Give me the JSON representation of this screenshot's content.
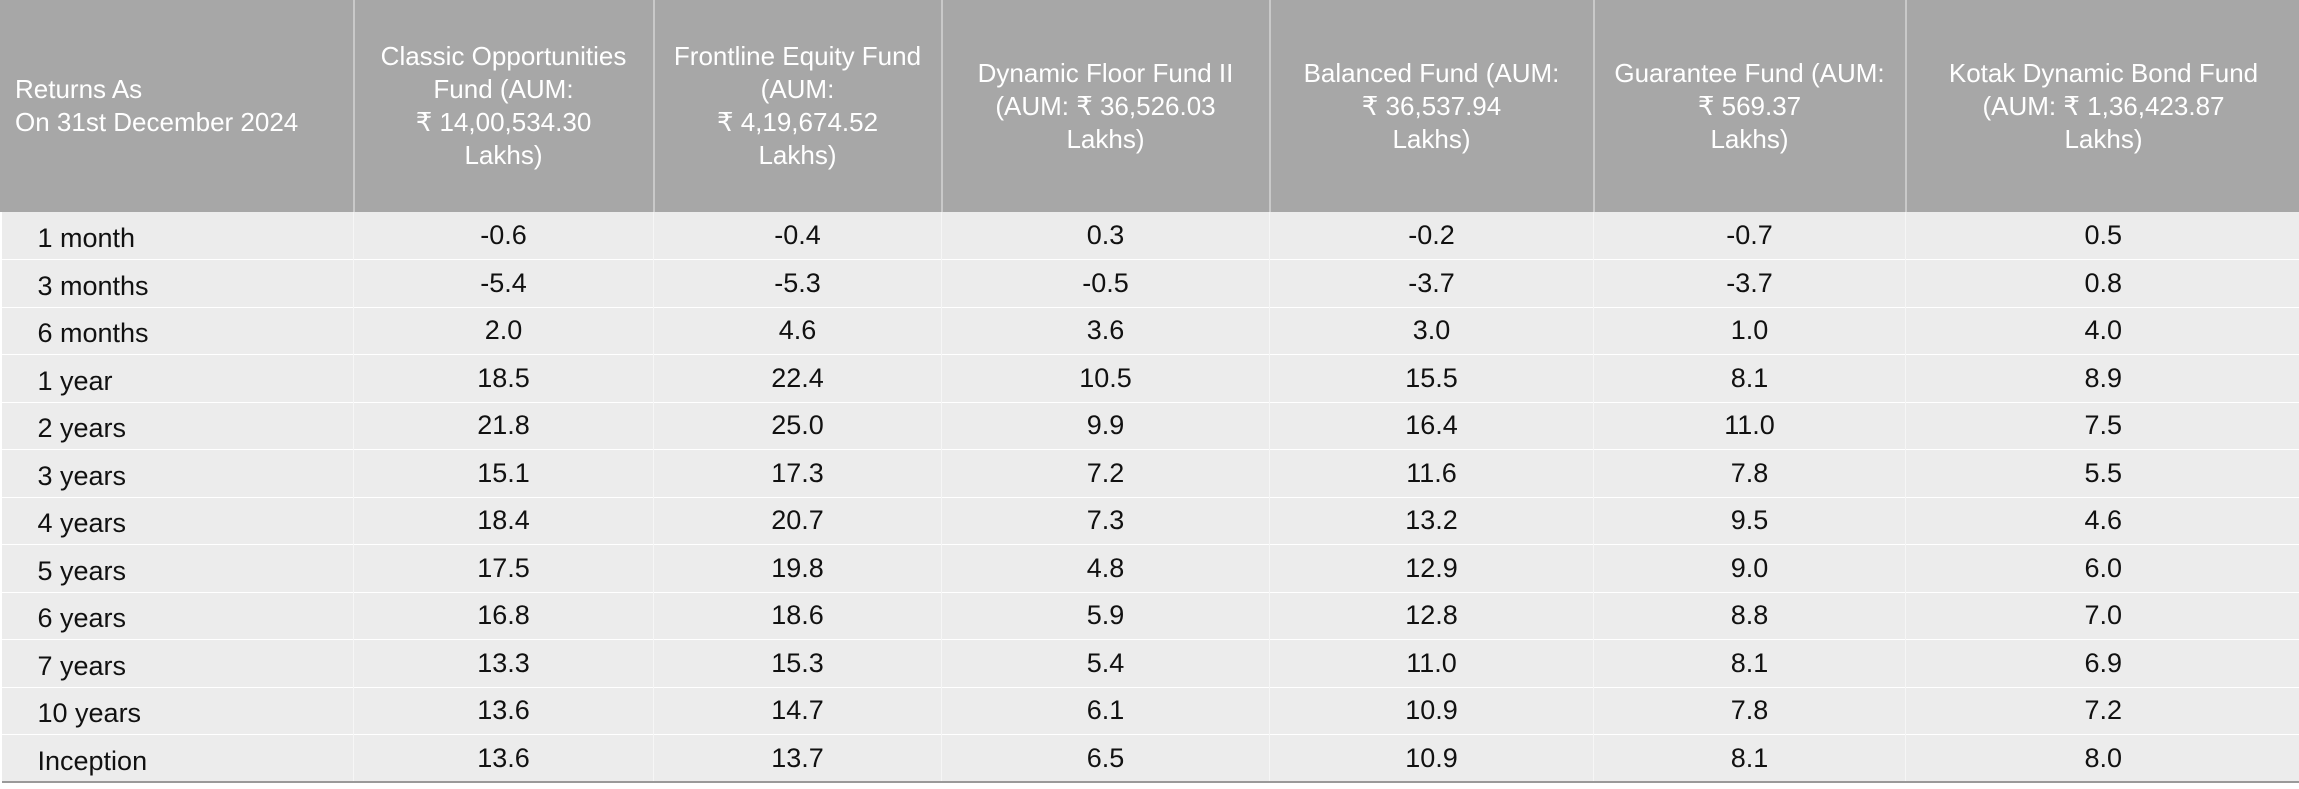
{
  "table": {
    "corner_header": {
      "line1": "Returns As",
      "line2": "On 31st December 2024"
    },
    "columns": [
      {
        "lines": [
          "Classic Opportunities",
          "Fund (AUM:",
          "₹ 14,00,534.30",
          "Lakhs)"
        ]
      },
      {
        "lines": [
          "Frontline Equity Fund",
          "(AUM:",
          "₹ 4,19,674.52",
          "Lakhs)"
        ]
      },
      {
        "lines": [
          "Dynamic Floor Fund II",
          "(AUM: ₹ 36,526.03",
          "Lakhs)"
        ]
      },
      {
        "lines": [
          "Balanced Fund (AUM:",
          "₹ 36,537.94",
          "Lakhs)"
        ]
      },
      {
        "lines": [
          "Guarantee Fund (AUM:",
          "₹ 569.37",
          "Lakhs)"
        ]
      },
      {
        "lines": [
          "Kotak Dynamic Bond Fund",
          "(AUM:  ₹ 1,36,423.87",
          "Lakhs)"
        ]
      }
    ],
    "rows": [
      {
        "period": "1 month",
        "values": [
          "-0.6",
          "-0.4",
          "0.3",
          "-0.2",
          "-0.7",
          "0.5"
        ]
      },
      {
        "period": "3 months",
        "values": [
          "-5.4",
          "-5.3",
          "-0.5",
          "-3.7",
          "-3.7",
          "0.8"
        ]
      },
      {
        "period": "6 months",
        "values": [
          "2.0",
          "4.6",
          "3.6",
          "3.0",
          "1.0",
          "4.0"
        ]
      },
      {
        "period": "1 year",
        "values": [
          "18.5",
          "22.4",
          "10.5",
          "15.5",
          "8.1",
          "8.9"
        ]
      },
      {
        "period": "2 years",
        "values": [
          "21.8",
          "25.0",
          "9.9",
          "16.4",
          "11.0",
          "7.5"
        ]
      },
      {
        "period": "3 years",
        "values": [
          "15.1",
          "17.3",
          "7.2",
          "11.6",
          "7.8",
          "5.5"
        ]
      },
      {
        "period": "4 years",
        "values": [
          "18.4",
          "20.7",
          "7.3",
          "13.2",
          "9.5",
          "4.6"
        ]
      },
      {
        "period": "5 years",
        "values": [
          "17.5",
          "19.8",
          "4.8",
          "12.9",
          "9.0",
          "6.0"
        ]
      },
      {
        "period": "6 years",
        "values": [
          "16.8",
          "18.6",
          "5.9",
          "12.8",
          "8.8",
          "7.0"
        ]
      },
      {
        "period": "7 years",
        "values": [
          "13.3",
          "15.3",
          "5.4",
          "11.0",
          "8.1",
          "6.9"
        ]
      },
      {
        "period": "10 years",
        "values": [
          "13.6",
          "14.7",
          "6.1",
          "10.9",
          "7.8",
          "7.2"
        ]
      },
      {
        "period": "Inception",
        "values": [
          "13.6",
          "13.7",
          "6.5",
          "10.9",
          "8.1",
          "8.0"
        ]
      }
    ]
  }
}
